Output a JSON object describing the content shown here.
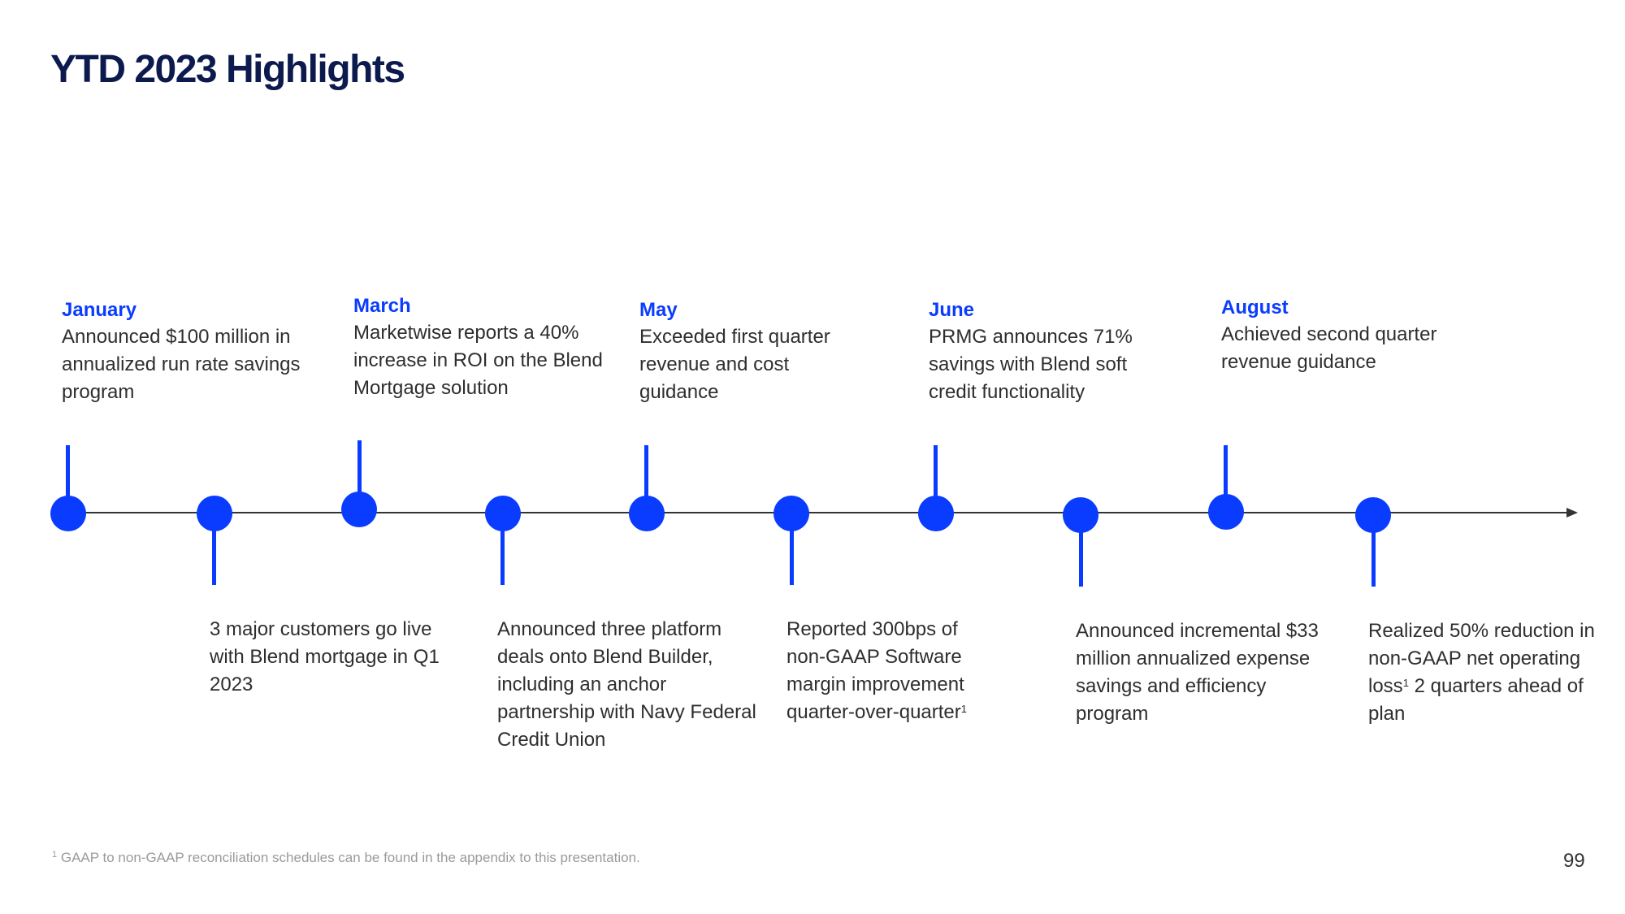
{
  "title": "YTD 2023 Highlights",
  "colors": {
    "accent": "#0a3cff",
    "title": "#0c1a4e",
    "text": "#2e2e2e",
    "footnote": "#9a9a9a"
  },
  "above_events": [
    {
      "month": "January",
      "text": "Announced $100 million in annualized run rate savings program"
    },
    {
      "month": "March",
      "text": "Marketwise reports a 40% increase in ROI on the Blend Mortgage solution"
    },
    {
      "month": "May",
      "text": "Exceeded first quarter revenue and cost guidance"
    },
    {
      "month": "June",
      "text": "PRMG announces 71% savings with Blend soft credit functionality"
    },
    {
      "month": "August",
      "text": "Achieved second quarter revenue guidance"
    }
  ],
  "below_events": [
    {
      "text": "3 major customers go live with Blend mortgage in Q1 2023"
    },
    {
      "text": "Announced three platform deals onto Blend Builder, including an anchor partnership with Navy Federal Credit Union"
    },
    {
      "text": "Reported 300bps of non-GAAP Software margin improvement quarter-over-quarter",
      "sup": "1"
    },
    {
      "text": "Announced incremental $33 million annualized expense savings and efficiency program"
    },
    {
      "text_before": "Realized 50% reduction in non-GAAP net operating loss",
      "sup": "1",
      "text_after": " 2 quarters ahead of plan"
    }
  ],
  "footnote": {
    "sup": "1",
    "text": "GAAP to non-GAAP reconciliation schedules can be found in the appendix to this presentation."
  },
  "page_number": "99"
}
